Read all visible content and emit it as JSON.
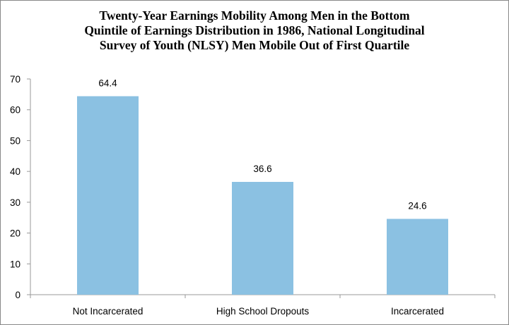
{
  "chart_data": {
    "type": "bar",
    "title_lines": [
      "Twenty-Year Earnings Mobility Among Men in the Bottom",
      "Quintile of Earnings Distribution in 1986, National Longitudinal",
      "Survey of Youth (NLSY) Men Mobile Out of First Quartile"
    ],
    "categories": [
      "Not Incarcerated",
      "High School Dropouts",
      "Incarcerated"
    ],
    "values": [
      64.4,
      36.6,
      24.6
    ],
    "data_labels": [
      "64.4",
      "36.6",
      "24.6"
    ],
    "xlabel": "",
    "ylabel": "",
    "ylim": [
      0,
      70
    ],
    "yticks": [
      0,
      10,
      20,
      30,
      40,
      50,
      60,
      70
    ],
    "grid": false,
    "legend": "none",
    "bar_color": "#8BC1E2"
  }
}
